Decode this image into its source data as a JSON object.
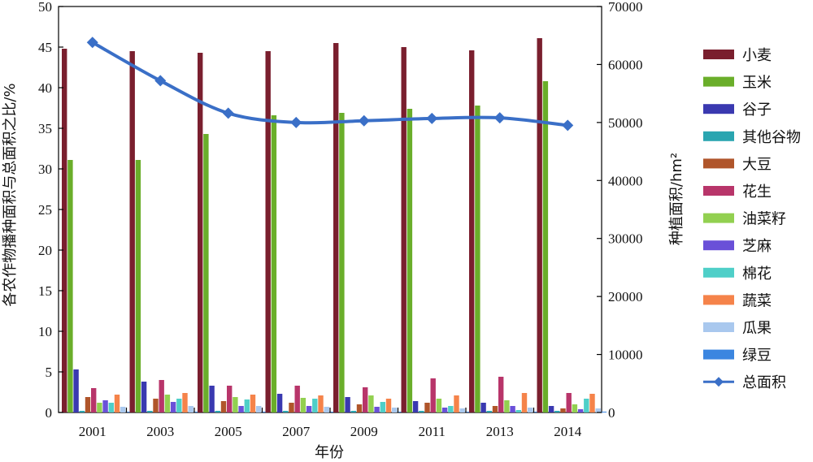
{
  "chart_data": {
    "type": "bar",
    "categories": [
      "2001",
      "2003",
      "2005",
      "2007",
      "2009",
      "2011",
      "2013",
      "2014"
    ],
    "xlabel": "年份",
    "ylabel": "各农作物播种面积与总面积之比/%",
    "y2label": "种植面积/hm²",
    "ylim": [
      0,
      50
    ],
    "yticks": [
      0,
      5,
      10,
      15,
      20,
      25,
      30,
      35,
      40,
      45,
      50
    ],
    "y2lim": [
      0,
      70000
    ],
    "y2ticks": [
      0,
      10000,
      20000,
      30000,
      40000,
      50000,
      60000,
      70000
    ],
    "grid": false,
    "legend_position": "right",
    "series": [
      {
        "name": "小麦",
        "color": "#7a1f2e",
        "values": [
          44.8,
          44.5,
          44.3,
          44.5,
          45.5,
          45.0,
          44.6,
          46.1
        ]
      },
      {
        "name": "玉米",
        "color": "#6aae2a",
        "values": [
          31.1,
          31.1,
          34.3,
          36.6,
          36.9,
          37.4,
          37.8,
          40.8
        ]
      },
      {
        "name": "谷子",
        "color": "#3a39b0",
        "values": [
          5.3,
          3.8,
          3.3,
          2.3,
          1.9,
          1.4,
          1.2,
          0.8
        ]
      },
      {
        "name": "其他谷物",
        "color": "#2aa5b0",
        "values": [
          0.2,
          0.2,
          0.2,
          0.2,
          0.2,
          0.2,
          0.2,
          0.2
        ]
      },
      {
        "name": "大豆",
        "color": "#b0552a",
        "values": [
          1.9,
          1.7,
          1.4,
          1.2,
          1.0,
          1.2,
          0.8,
          0.5
        ]
      },
      {
        "name": "花生",
        "color": "#b8356a",
        "values": [
          3.0,
          4.0,
          3.3,
          3.3,
          3.1,
          4.2,
          4.4,
          2.4
        ]
      },
      {
        "name": "油菜籽",
        "color": "#92d050",
        "values": [
          1.2,
          2.2,
          1.9,
          1.8,
          2.1,
          1.7,
          1.5,
          1.0
        ]
      },
      {
        "name": "芝麻",
        "color": "#6a50d8",
        "values": [
          1.5,
          1.3,
          0.8,
          0.8,
          0.7,
          0.6,
          0.8,
          0.4
        ]
      },
      {
        "name": "棉花",
        "color": "#4fcfc8",
        "values": [
          1.2,
          1.7,
          1.6,
          1.7,
          1.3,
          0.8,
          0.3,
          1.7
        ]
      },
      {
        "name": "蔬菜",
        "color": "#f5834a",
        "values": [
          2.2,
          2.4,
          2.2,
          2.1,
          1.7,
          2.1,
          2.4,
          2.3
        ]
      },
      {
        "name": "瓜果",
        "color": "#a9c8ee",
        "values": [
          0.7,
          0.8,
          0.8,
          0.7,
          0.6,
          0.5,
          0.6,
          0.5
        ]
      },
      {
        "name": "绿豆",
        "color": "#3b86e0",
        "values": [
          0.1,
          0.1,
          0.1,
          0.1,
          0.1,
          0.1,
          0.1,
          0.1
        ]
      }
    ],
    "line_series": {
      "name": "总面积",
      "color": "#3a6fc7",
      "axis": "y2",
      "values": [
        63800,
        57200,
        51600,
        50000,
        50300,
        50700,
        50800,
        49500
      ]
    }
  }
}
